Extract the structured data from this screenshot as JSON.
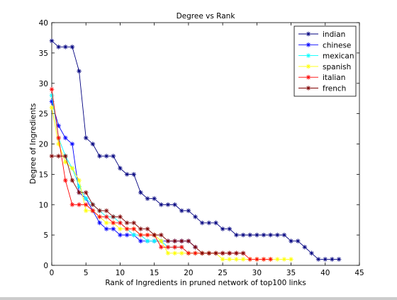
{
  "chart_data": {
    "type": "line",
    "title": "Degree vs Rank",
    "xlabel": "Rank of Ingredients in pruned network of top100 links",
    "ylabel": "Degree of Ingredients",
    "xlim": [
      0,
      45
    ],
    "ylim": [
      0,
      40
    ],
    "xticks": [
      "0",
      "5",
      "10",
      "15",
      "20",
      "25",
      "30",
      "35",
      "40",
      "45"
    ],
    "yticks": [
      "0",
      "5",
      "10",
      "15",
      "20",
      "25",
      "30",
      "35",
      "40"
    ],
    "grid": false,
    "legend_position": "top-right",
    "series": [
      {
        "name": "indian",
        "color": "#00007f",
        "marker": "asterisk",
        "x": [
          0,
          1,
          2,
          3,
          4,
          5,
          6,
          7,
          8,
          9,
          10,
          11,
          12,
          13,
          14,
          15,
          16,
          17,
          18,
          19,
          20,
          21,
          22,
          23,
          24,
          25,
          26,
          27,
          28,
          29,
          30,
          31,
          32,
          33,
          34,
          35,
          36,
          37,
          38,
          39,
          40,
          41,
          42
        ],
        "y": [
          37,
          36,
          36,
          36,
          32,
          21,
          20,
          18,
          18,
          18,
          16,
          15,
          15,
          12,
          11,
          11,
          10,
          10,
          10,
          9,
          9,
          8,
          7,
          7,
          7,
          6,
          6,
          5,
          5,
          5,
          5,
          5,
          5,
          5,
          5,
          4,
          4,
          3,
          2,
          1,
          1,
          1,
          1
        ]
      },
      {
        "name": "chinese",
        "color": "#0000ff",
        "marker": "asterisk",
        "x": [
          0,
          1,
          2,
          3,
          4,
          5,
          6,
          7,
          8,
          9,
          10,
          11,
          12,
          13,
          14,
          15,
          16,
          17,
          18,
          19,
          20,
          21
        ],
        "y": [
          27,
          23,
          21,
          20,
          12,
          11,
          9,
          7,
          6,
          6,
          5,
          5,
          5,
          4,
          4,
          4,
          4,
          4,
          4,
          4,
          4,
          3
        ]
      },
      {
        "name": "mexican",
        "color": "#00ffff",
        "marker": "asterisk",
        "x": [
          0,
          1,
          2,
          3,
          4,
          5,
          6,
          7,
          8,
          9,
          10,
          11,
          12,
          13,
          14,
          15,
          16,
          17,
          18,
          19,
          20,
          21
        ],
        "y": [
          28,
          21,
          18,
          16,
          13,
          11,
          10,
          9,
          8,
          8,
          7,
          6,
          5,
          5,
          4,
          4,
          4,
          3,
          3,
          3,
          2,
          2
        ]
      },
      {
        "name": "spanish",
        "color": "#ffff00",
        "marker": "asterisk",
        "x": [
          0,
          1,
          2,
          3,
          4,
          5,
          6,
          7,
          8,
          9,
          10,
          11,
          12,
          13,
          14,
          15,
          16,
          17,
          18,
          19,
          20,
          21,
          22,
          23,
          24,
          25,
          26,
          27,
          28,
          29,
          30,
          31,
          32,
          33,
          34,
          35
        ],
        "y": [
          26,
          20,
          17,
          16,
          14,
          9,
          9,
          8,
          7,
          7,
          6,
          6,
          6,
          5,
          5,
          5,
          4,
          2,
          2,
          2,
          2,
          2,
          2,
          2,
          2,
          1,
          1,
          1,
          1,
          1,
          1,
          1,
          1,
          1,
          1,
          1
        ]
      },
      {
        "name": "italian",
        "color": "#ff0000",
        "marker": "asterisk",
        "x": [
          0,
          1,
          2,
          3,
          4,
          5,
          6,
          7,
          8,
          9,
          10,
          11,
          12,
          13,
          14,
          15,
          16,
          17,
          18,
          19,
          20,
          21,
          22,
          23,
          24,
          25,
          26,
          27,
          28,
          29,
          30,
          31,
          32
        ],
        "y": [
          29,
          21,
          14,
          10,
          10,
          10,
          9,
          8,
          8,
          7,
          7,
          6,
          6,
          5,
          5,
          5,
          3,
          3,
          3,
          3,
          2,
          2,
          2,
          2,
          2,
          2,
          2,
          2,
          2,
          1,
          1,
          1,
          1
        ]
      },
      {
        "name": "french",
        "color": "#7f0000",
        "marker": "asterisk",
        "x": [
          0,
          1,
          2,
          3,
          4,
          5,
          6,
          7,
          8,
          9,
          10,
          11,
          12,
          13,
          14,
          15,
          16,
          17,
          18,
          19,
          20,
          21,
          22,
          23,
          24,
          25,
          26,
          27,
          28
        ],
        "y": [
          18,
          18,
          18,
          14,
          12,
          12,
          10,
          9,
          9,
          8,
          8,
          7,
          7,
          6,
          6,
          5,
          5,
          4,
          4,
          4,
          4,
          3,
          2,
          2,
          2,
          2,
          2,
          2,
          2
        ]
      }
    ]
  }
}
